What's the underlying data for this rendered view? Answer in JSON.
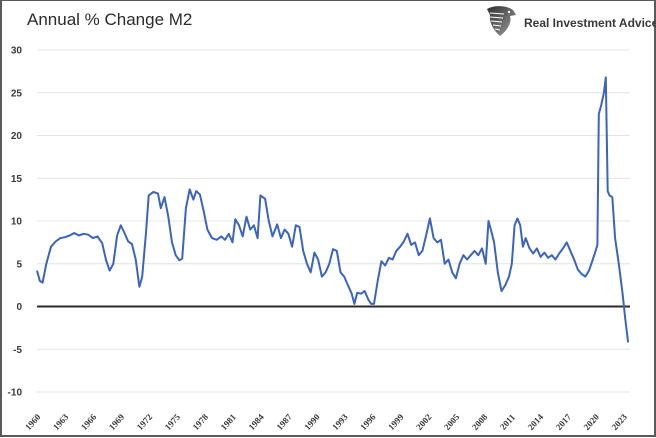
{
  "header": {
    "title": "Annual % Change M2",
    "brand": "Real Investment Advice",
    "brand_icon": "eagle-shield-icon"
  },
  "colors": {
    "line": "#3a64c0",
    "grid": "#e4e4e4",
    "zero_line": "#2a2a2a",
    "text": "#3a3a3a"
  },
  "chart_data": {
    "type": "line",
    "title": "Annual % Change M2",
    "xlabel": "",
    "ylabel": "",
    "ylim": [
      -10,
      30
    ],
    "xlim": [
      1960,
      2023.7
    ],
    "grid": true,
    "legend": "none",
    "yticks": [
      "30",
      "25",
      "20",
      "15",
      "10",
      "5",
      "0",
      "-5",
      "-10"
    ],
    "ytick_values": [
      30,
      25,
      20,
      15,
      10,
      5,
      0,
      -5,
      -10
    ],
    "xticks": [
      "1960",
      "1963",
      "1966",
      "1969",
      "1972",
      "1975",
      "1978",
      "1981",
      "1984",
      "1987",
      "1990",
      "1993",
      "1996",
      "1999",
      "2002",
      "2005",
      "2008",
      "2011",
      "2014",
      "2017",
      "2020",
      "2023"
    ],
    "series": [
      {
        "name": "Annual % Change M2",
        "color": "#3a64c0",
        "points": [
          [
            1960.0,
            4.2
          ],
          [
            1960.3,
            3.0
          ],
          [
            1960.6,
            2.8
          ],
          [
            1961.0,
            5.0
          ],
          [
            1961.5,
            7.0
          ],
          [
            1962.0,
            7.6
          ],
          [
            1962.5,
            8.0
          ],
          [
            1963.0,
            8.1
          ],
          [
            1963.5,
            8.3
          ],
          [
            1964.0,
            8.6
          ],
          [
            1964.5,
            8.3
          ],
          [
            1965.0,
            8.5
          ],
          [
            1965.5,
            8.4
          ],
          [
            1966.0,
            8.0
          ],
          [
            1966.5,
            8.2
          ],
          [
            1967.0,
            7.4
          ],
          [
            1967.4,
            5.5
          ],
          [
            1967.8,
            4.2
          ],
          [
            1968.2,
            5.0
          ],
          [
            1968.6,
            8.3
          ],
          [
            1969.0,
            9.5
          ],
          [
            1969.4,
            8.6
          ],
          [
            1969.8,
            7.6
          ],
          [
            1970.2,
            7.3
          ],
          [
            1970.6,
            5.5
          ],
          [
            1971.0,
            2.3
          ],
          [
            1971.3,
            3.5
          ],
          [
            1971.7,
            8.5
          ],
          [
            1972.0,
            13.0
          ],
          [
            1972.5,
            13.4
          ],
          [
            1973.0,
            13.2
          ],
          [
            1973.3,
            11.5
          ],
          [
            1973.7,
            12.8
          ],
          [
            1974.1,
            10.5
          ],
          [
            1974.5,
            7.5
          ],
          [
            1974.9,
            6.0
          ],
          [
            1975.3,
            5.4
          ],
          [
            1975.6,
            5.6
          ],
          [
            1976.0,
            11.5
          ],
          [
            1976.4,
            13.7
          ],
          [
            1976.8,
            12.5
          ],
          [
            1977.1,
            13.5
          ],
          [
            1977.5,
            13.1
          ],
          [
            1977.9,
            11.2
          ],
          [
            1978.3,
            9.0
          ],
          [
            1978.8,
            8.0
          ],
          [
            1979.3,
            7.8
          ],
          [
            1979.8,
            8.2
          ],
          [
            1980.2,
            7.8
          ],
          [
            1980.6,
            8.5
          ],
          [
            1981.0,
            7.5
          ],
          [
            1981.3,
            10.2
          ],
          [
            1981.7,
            9.5
          ],
          [
            1982.1,
            8.2
          ],
          [
            1982.5,
            10.5
          ],
          [
            1982.9,
            9.0
          ],
          [
            1983.3,
            9.5
          ],
          [
            1983.7,
            8.0
          ],
          [
            1984.0,
            13.0
          ],
          [
            1984.5,
            12.6
          ],
          [
            1984.9,
            10.0
          ],
          [
            1985.3,
            8.2
          ],
          [
            1985.8,
            9.6
          ],
          [
            1986.2,
            8.0
          ],
          [
            1986.6,
            9.0
          ],
          [
            1987.0,
            8.5
          ],
          [
            1987.4,
            7.0
          ],
          [
            1987.8,
            9.5
          ],
          [
            1988.2,
            9.3
          ],
          [
            1988.6,
            6.5
          ],
          [
            1989.0,
            5.0
          ],
          [
            1989.4,
            4.0
          ],
          [
            1989.8,
            6.3
          ],
          [
            1990.2,
            5.5
          ],
          [
            1990.6,
            3.5
          ],
          [
            1991.0,
            4.0
          ],
          [
            1991.4,
            5.0
          ],
          [
            1991.8,
            6.7
          ],
          [
            1992.2,
            6.5
          ],
          [
            1992.6,
            4.0
          ],
          [
            1993.0,
            3.5
          ],
          [
            1993.4,
            2.5
          ],
          [
            1993.8,
            1.5
          ],
          [
            1994.1,
            0.3
          ],
          [
            1994.4,
            1.6
          ],
          [
            1994.8,
            1.5
          ],
          [
            1995.2,
            1.8
          ],
          [
            1995.6,
            0.8
          ],
          [
            1995.9,
            0.3
          ],
          [
            1996.2,
            0.3
          ],
          [
            1996.6,
            3.0
          ],
          [
            1997.0,
            5.3
          ],
          [
            1997.4,
            4.8
          ],
          [
            1997.8,
            5.7
          ],
          [
            1998.2,
            5.5
          ],
          [
            1998.6,
            6.5
          ],
          [
            1999.0,
            7.0
          ],
          [
            1999.4,
            7.6
          ],
          [
            1999.8,
            8.5
          ],
          [
            2000.2,
            7.2
          ],
          [
            2000.6,
            7.5
          ],
          [
            2001.0,
            6.0
          ],
          [
            2001.4,
            6.5
          ],
          [
            2001.8,
            8.3
          ],
          [
            2002.2,
            10.3
          ],
          [
            2002.6,
            8.0
          ],
          [
            2003.0,
            7.5
          ],
          [
            2003.4,
            7.8
          ],
          [
            2003.8,
            5.0
          ],
          [
            2004.2,
            5.5
          ],
          [
            2004.6,
            4.0
          ],
          [
            2005.0,
            3.3
          ],
          [
            2005.4,
            5.0
          ],
          [
            2005.8,
            6.0
          ],
          [
            2006.2,
            5.5
          ],
          [
            2006.6,
            6.0
          ],
          [
            2007.0,
            6.5
          ],
          [
            2007.4,
            6.0
          ],
          [
            2007.8,
            6.8
          ],
          [
            2008.2,
            5.0
          ],
          [
            2008.5,
            10.0
          ],
          [
            2008.8,
            8.8
          ],
          [
            2009.1,
            7.5
          ],
          [
            2009.5,
            4.0
          ],
          [
            2009.9,
            1.8
          ],
          [
            2010.3,
            2.5
          ],
          [
            2010.7,
            3.5
          ],
          [
            2011.0,
            5.0
          ],
          [
            2011.3,
            9.5
          ],
          [
            2011.6,
            10.3
          ],
          [
            2011.9,
            9.5
          ],
          [
            2012.2,
            7.0
          ],
          [
            2012.5,
            8.0
          ],
          [
            2012.9,
            6.8
          ],
          [
            2013.3,
            6.2
          ],
          [
            2013.7,
            6.8
          ],
          [
            2014.1,
            5.8
          ],
          [
            2014.5,
            6.3
          ],
          [
            2014.9,
            5.7
          ],
          [
            2015.3,
            6.0
          ],
          [
            2015.7,
            5.5
          ],
          [
            2016.1,
            6.2
          ],
          [
            2016.5,
            6.8
          ],
          [
            2016.9,
            7.5
          ],
          [
            2017.3,
            6.5
          ],
          [
            2017.7,
            5.5
          ],
          [
            2018.1,
            4.3
          ],
          [
            2018.5,
            3.8
          ],
          [
            2018.9,
            3.5
          ],
          [
            2019.3,
            4.2
          ],
          [
            2019.7,
            5.5
          ],
          [
            2020.0,
            6.5
          ],
          [
            2020.2,
            7.2
          ],
          [
            2020.35,
            22.5
          ],
          [
            2020.6,
            23.5
          ],
          [
            2020.9,
            25.0
          ],
          [
            2021.1,
            26.8
          ],
          [
            2021.3,
            13.5
          ],
          [
            2021.5,
            13.0
          ],
          [
            2021.8,
            12.8
          ],
          [
            2022.1,
            8.0
          ],
          [
            2022.5,
            5.0
          ],
          [
            2022.9,
            1.5
          ],
          [
            2023.2,
            -1.5
          ],
          [
            2023.5,
            -4.2
          ]
        ]
      }
    ]
  }
}
